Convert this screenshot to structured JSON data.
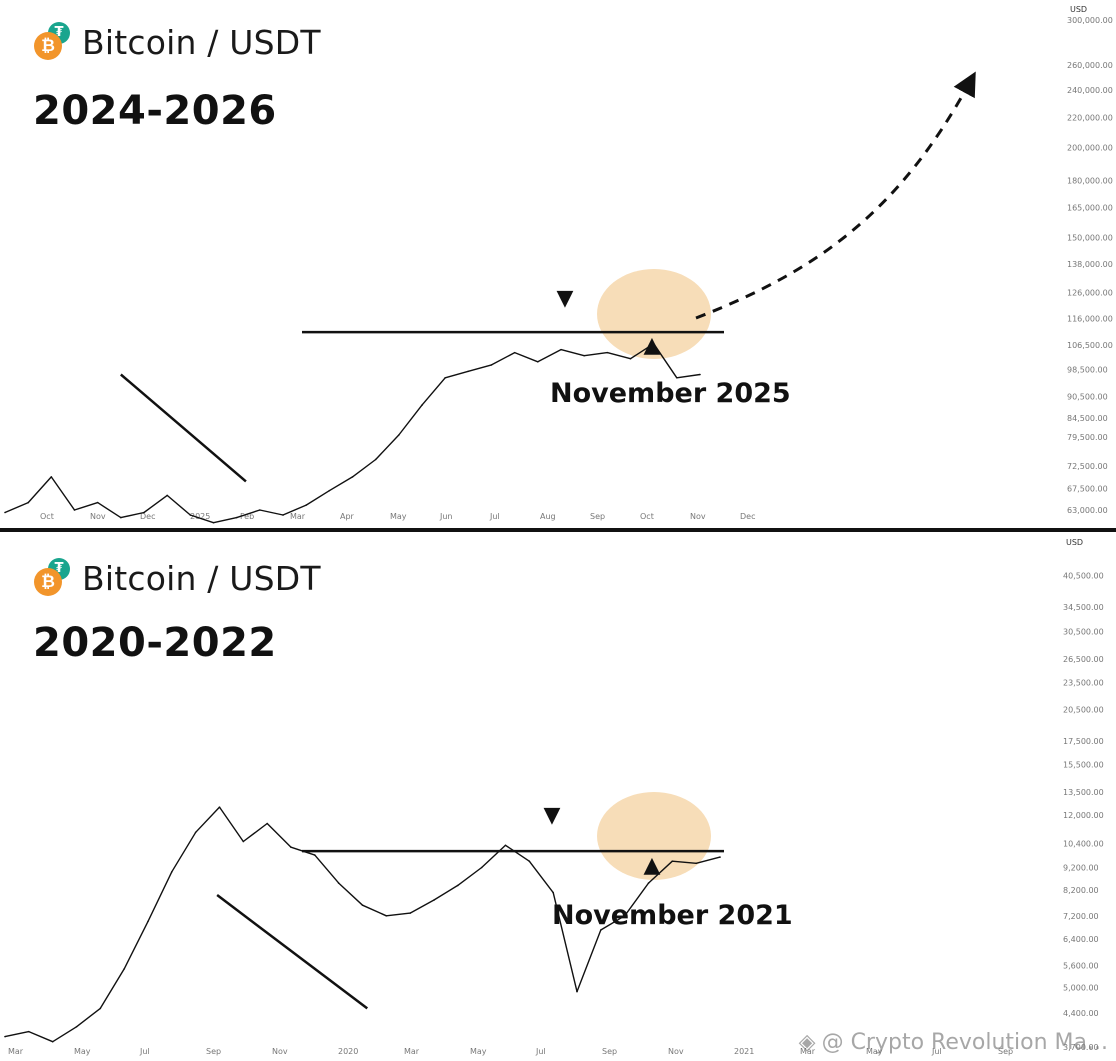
{
  "chart_data": [
    {
      "type": "line",
      "title": "Bitcoin / USDT",
      "period": "2024-2026",
      "annotation": "November 2025",
      "price_unit": "USD",
      "y_scale": "log",
      "ylim": [
        63000,
        300000
      ],
      "price_ticks": [
        "300,000.00",
        "260,000.00",
        "240,000.00",
        "220,000.00",
        "200,000.00",
        "180,000.00",
        "165,000.00",
        "150,000.00",
        "138,000.00",
        "126,000.00",
        "116,000.00",
        "106,500.00",
        "98,500.00",
        "90,500.00",
        "84,500.00",
        "79,500.00",
        "72,500.00",
        "67,500.00",
        "63,000.00"
      ],
      "x_ticks": [
        "Oct",
        "Nov",
        "Dec",
        "2025",
        "Feb",
        "Mar",
        "Apr",
        "May",
        "Jun",
        "Jul",
        "Aug",
        "Sep",
        "Oct",
        "Nov",
        "Dec"
      ],
      "series": [
        {
          "x": [
            0,
            1,
            2,
            3,
            4,
            5,
            6,
            7,
            8,
            9,
            10,
            11,
            12,
            13,
            14,
            15,
            16,
            17,
            18,
            19,
            20,
            21,
            22,
            23,
            24,
            25,
            26,
            27,
            28,
            29,
            30
          ],
          "y": [
            62500,
            64500,
            70000,
            63000,
            64500,
            61500,
            62500,
            66000,
            62000,
            60500,
            61500,
            63000,
            62000,
            64000,
            67000,
            70000,
            74000,
            80000,
            88000,
            96000,
            98000,
            100000,
            104000,
            101000,
            105000,
            103000,
            104000,
            102000,
            107000,
            96000,
            97000
          ]
        }
      ],
      "resistance_level": 111000,
      "support_trend": [
        {
          "x": 5.0,
          "y": 97000
        },
        {
          "x": 10.4,
          "y": 69000
        }
      ],
      "marker_down_label": "▼",
      "marker_up_label": "▲",
      "projection": "dashed arrow up toward 260,000"
    },
    {
      "type": "line",
      "title": "Bitcoin / USDT",
      "period": "2020-2022",
      "annotation": "November 2021",
      "price_unit": "USD",
      "y_scale": "log",
      "ylim": [
        3700,
        48000
      ],
      "price_ticks": [
        "40,500.00",
        "34,500.00",
        "30,500.00",
        "26,500.00",
        "23,500.00",
        "20,500.00",
        "17,500.00",
        "15,500.00",
        "13,500.00",
        "12,000.00",
        "10,400.00",
        "9,200.00",
        "8,200.00",
        "7,200.00",
        "6,400.00",
        "5,600.00",
        "5,000.00",
        "4,400.00",
        "3,700.00"
      ],
      "x_ticks": [
        "Mar",
        "May",
        "Jul",
        "Sep",
        "Nov",
        "2020",
        "Mar",
        "May",
        "Jul",
        "Sep",
        "Nov",
        "2021",
        "Mar",
        "May",
        "Jul",
        "Sep"
      ],
      "series": [
        {
          "x": [
            0,
            1,
            2,
            3,
            4,
            5,
            6,
            7,
            8,
            9,
            10,
            11,
            12,
            13,
            14,
            15,
            16,
            17,
            18,
            19,
            20,
            21,
            22,
            23,
            24,
            25,
            26,
            27,
            28,
            29,
            30
          ],
          "y": [
            3900,
            4000,
            3800,
            4100,
            4500,
            5500,
            7000,
            9000,
            11000,
            12500,
            10500,
            11500,
            10200,
            9800,
            8500,
            7600,
            7200,
            7300,
            7800,
            8400,
            9200,
            10300,
            9500,
            8100,
            4900,
            6700,
            7200,
            8500,
            9500,
            9400,
            9700
          ]
        }
      ],
      "resistance_level": 10000,
      "support_trend": [
        {
          "x": 8.9,
          "y": 8000
        },
        {
          "x": 15.2,
          "y": 4500
        }
      ],
      "marker_down_label": "▼",
      "marker_up_label": "▲"
    }
  ],
  "watermark": "@ Crypto Revolution Ma...",
  "icons": [
    "bitcoin-icon",
    "tether-icon",
    "binance-square-icon"
  ],
  "colors": {
    "highlight": "#f7ddb8",
    "line": "#111111",
    "axis_text": "#777777"
  }
}
